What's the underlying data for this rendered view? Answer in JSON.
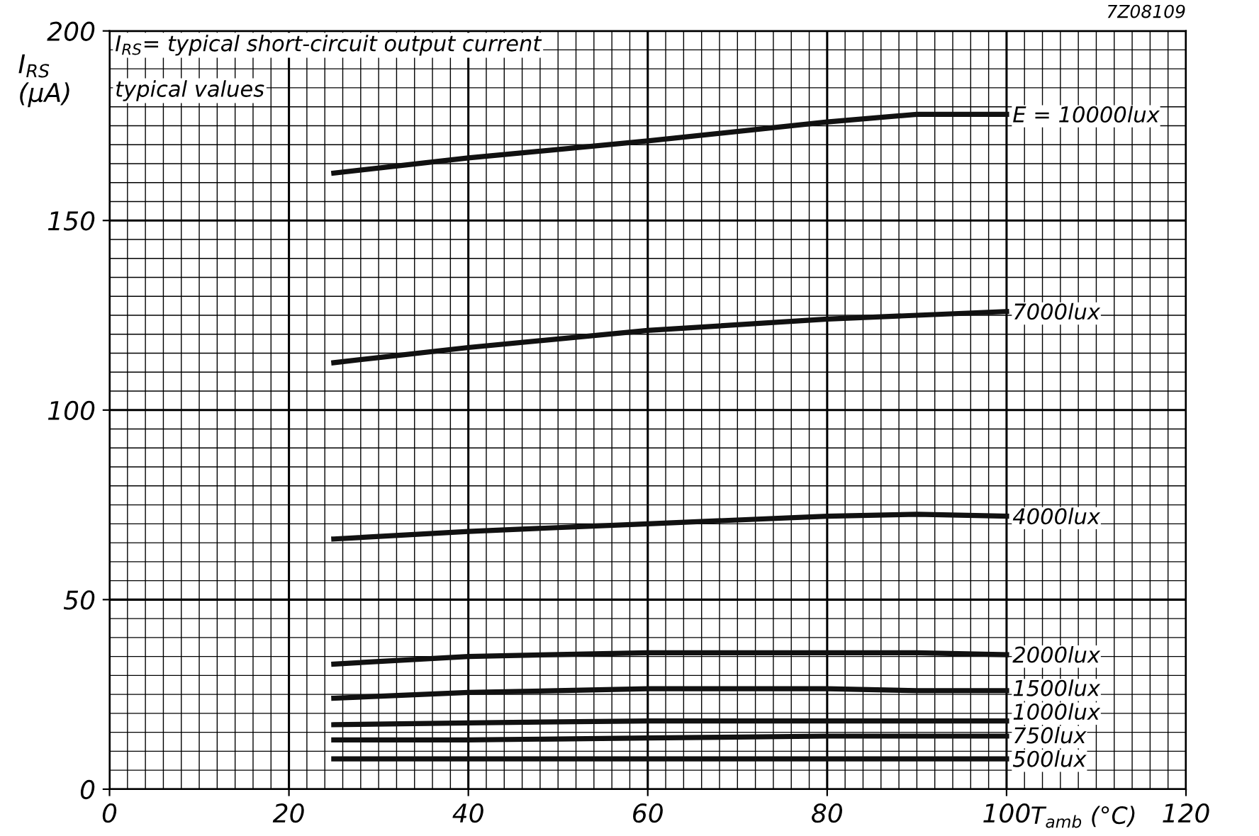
{
  "chart_data": {
    "type": "line",
    "xlabel": "T$_{amb}$ (°C)",
    "ylabel": "I$_{RS}$\n(µA)",
    "annotations": [
      "I$_{RS}$= typical short-circuit output current",
      "typical values",
      "7Z08109"
    ],
    "x": [
      25,
      40,
      60,
      80,
      90,
      100
    ],
    "series": [
      {
        "name": "E = 10000lux",
        "color": "#111111",
        "values": [
          162.5,
          166.5,
          171,
          176,
          178,
          178
        ]
      },
      {
        "name": "7000lux",
        "color": "#111111",
        "values": [
          112.5,
          116.5,
          121,
          124,
          125,
          126
        ]
      },
      {
        "name": "4000lux",
        "color": "#111111",
        "values": [
          66,
          68,
          70,
          72,
          72.5,
          72
        ]
      },
      {
        "name": "2000lux",
        "color": "#111111",
        "values": [
          33,
          35,
          36,
          36,
          36,
          35.5
        ]
      },
      {
        "name": "1500lux",
        "color": "#111111",
        "values": [
          24,
          25.5,
          26.5,
          26.5,
          26,
          26
        ]
      },
      {
        "name": "1000lux",
        "color": "#111111",
        "values": [
          17,
          17.5,
          18,
          18,
          18,
          18
        ]
      },
      {
        "name": "750lux",
        "color": "#111111",
        "values": [
          13,
          13,
          13.5,
          14,
          14,
          14
        ]
      },
      {
        "name": "500lux",
        "color": "#111111",
        "values": [
          8,
          8,
          8,
          8,
          8,
          8
        ]
      }
    ],
    "xlim": [
      0,
      120
    ],
    "ylim": [
      0,
      200
    ],
    "xticks": [
      0,
      20,
      40,
      60,
      80,
      100,
      120
    ],
    "yticks": [
      0,
      50,
      100,
      150,
      200
    ],
    "grid": true,
    "line_style": "solid",
    "marker": "none",
    "legend": false
  }
}
